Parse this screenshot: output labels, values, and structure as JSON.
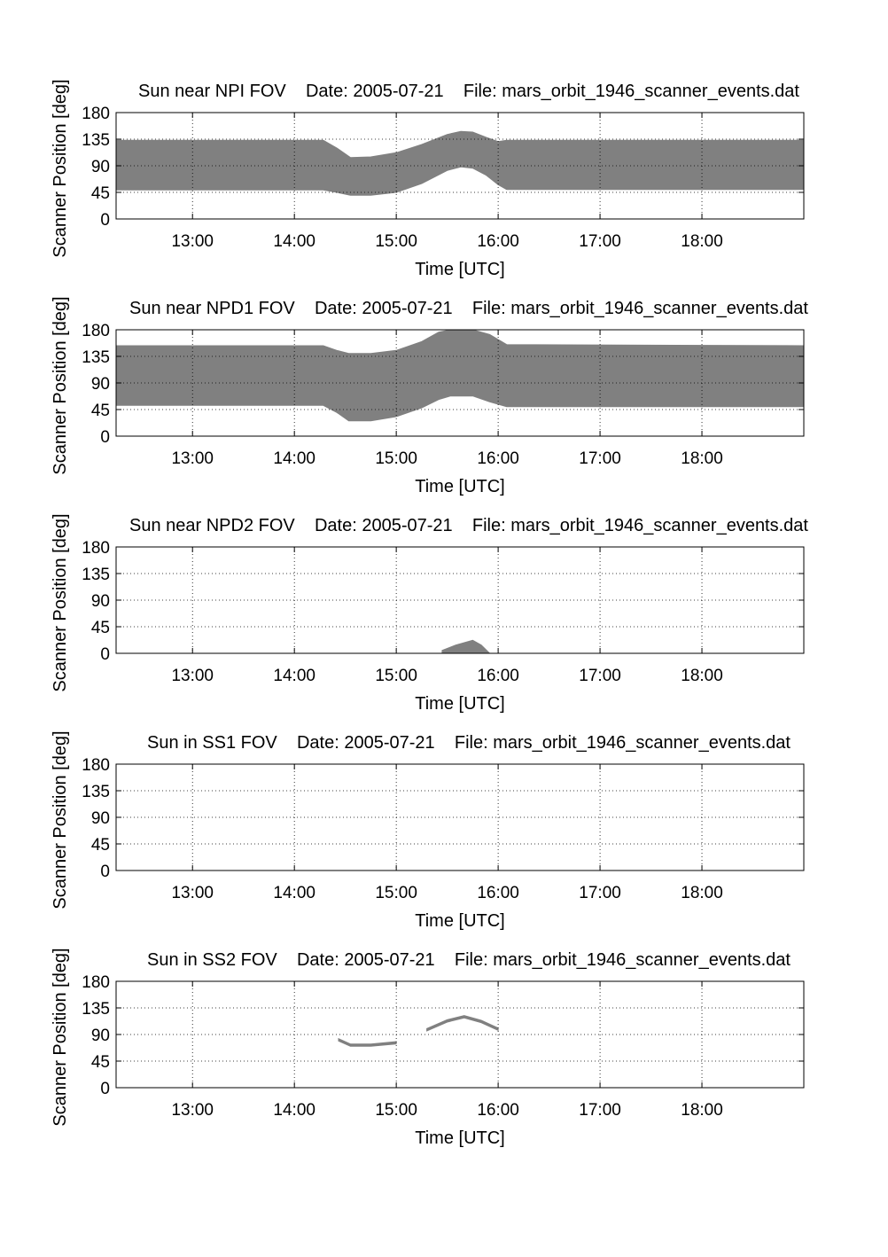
{
  "chart_data": [
    {
      "type": "area",
      "title": "Sun near NPI FOV    Date: 2005-07-21    File: mars_orbit_1946_scanner_events.dat",
      "xlabel": "Time [UTC]",
      "ylabel": "Scanner Position [deg]",
      "xlim": [
        "12:15",
        "19:00"
      ],
      "ylim": [
        0,
        180
      ],
      "xticks": [
        "13:00",
        "14:00",
        "15:00",
        "16:00",
        "17:00",
        "18:00"
      ],
      "yticks": [
        0,
        45,
        90,
        135,
        180
      ],
      "grid": true,
      "series": [
        {
          "fill": "#808080",
          "x": [
            "12:15",
            "14:17",
            "14:25",
            "14:33",
            "14:45",
            "15:00",
            "15:15",
            "15:30",
            "15:38",
            "15:45",
            "15:53",
            "16:00",
            "16:05",
            "19:00"
          ],
          "upper": [
            133,
            133,
            120,
            104,
            105,
            112,
            126,
            143,
            148,
            147,
            138,
            131,
            133,
            133
          ],
          "lower": [
            49,
            49,
            45,
            40,
            40,
            45,
            60,
            82,
            88,
            86,
            74,
            58,
            50,
            50
          ]
        }
      ]
    },
    {
      "type": "area",
      "title": "Sun near NPD1 FOV    Date: 2005-07-21    File: mars_orbit_1946_scanner_events.dat",
      "xlabel": "Time [UTC]",
      "ylabel": "Scanner Position [deg]",
      "xlim": [
        "12:15",
        "19:00"
      ],
      "ylim": [
        0,
        180
      ],
      "xticks": [
        "13:00",
        "14:00",
        "15:00",
        "16:00",
        "17:00",
        "18:00"
      ],
      "yticks": [
        0,
        45,
        90,
        135,
        180
      ],
      "grid": true,
      "series": [
        {
          "fill": "#808080",
          "x": [
            "12:15",
            "14:17",
            "14:25",
            "14:32",
            "14:45",
            "15:00",
            "15:15",
            "15:25",
            "15:32",
            "15:45",
            "15:55",
            "16:05",
            "19:00"
          ],
          "upper": [
            153,
            153,
            145,
            140,
            140,
            145,
            160,
            176,
            180,
            180,
            172,
            155,
            153
          ],
          "lower": [
            52,
            52,
            40,
            26,
            26,
            33,
            48,
            62,
            68,
            68,
            58,
            50,
            50
          ]
        }
      ]
    },
    {
      "type": "area",
      "title": "Sun near NPD2 FOV    Date: 2005-07-21    File: mars_orbit_1946_scanner_events.dat",
      "xlabel": "Time [UTC]",
      "ylabel": "Scanner Position [deg]",
      "xlim": [
        "12:15",
        "19:00"
      ],
      "ylim": [
        0,
        180
      ],
      "xticks": [
        "13:00",
        "14:00",
        "15:00",
        "16:00",
        "17:00",
        "18:00"
      ],
      "yticks": [
        0,
        45,
        90,
        135,
        180
      ],
      "grid": true,
      "series": [
        {
          "fill": "#808080",
          "x": [
            "15:27",
            "15:35",
            "15:45",
            "15:50",
            "15:55"
          ],
          "upper": [
            5,
            14,
            22,
            14,
            0
          ],
          "lower": [
            0,
            0,
            0,
            0,
            0
          ]
        }
      ]
    },
    {
      "type": "area",
      "title": "Sun in SS1 FOV    Date: 2005-07-21    File: mars_orbit_1946_scanner_events.dat",
      "xlabel": "Time [UTC]",
      "ylabel": "Scanner Position [deg]",
      "xlim": [
        "12:15",
        "19:00"
      ],
      "ylim": [
        0,
        180
      ],
      "xticks": [
        "13:00",
        "14:00",
        "15:00",
        "16:00",
        "17:00",
        "18:00"
      ],
      "yticks": [
        0,
        45,
        90,
        135,
        180
      ],
      "grid": true,
      "series": []
    },
    {
      "type": "area",
      "title": "Sun in SS2 FOV    Date: 2005-07-21    File: mars_orbit_1946_scanner_events.dat",
      "xlabel": "Time [UTC]",
      "ylabel": "Scanner Position [deg]",
      "xlim": [
        "12:15",
        "19:00"
      ],
      "ylim": [
        0,
        180
      ],
      "xticks": [
        "13:00",
        "14:00",
        "15:00",
        "16:00",
        "17:00",
        "18:00"
      ],
      "yticks": [
        0,
        45,
        90,
        135,
        180
      ],
      "grid": true,
      "series": [
        {
          "fill": "#808080",
          "x": [
            "14:26",
            "14:33",
            "14:45",
            "15:00"
          ],
          "upper": [
            83,
            74,
            74,
            78
          ],
          "lower": [
            79,
            70,
            70,
            74
          ]
        },
        {
          "fill": "#808080",
          "x": [
            "15:18",
            "15:30",
            "15:40",
            "15:50",
            "16:00"
          ],
          "upper": [
            100,
            115,
            122,
            114,
            101
          ],
          "lower": [
            96,
            111,
            118,
            110,
            97
          ]
        }
      ]
    }
  ]
}
